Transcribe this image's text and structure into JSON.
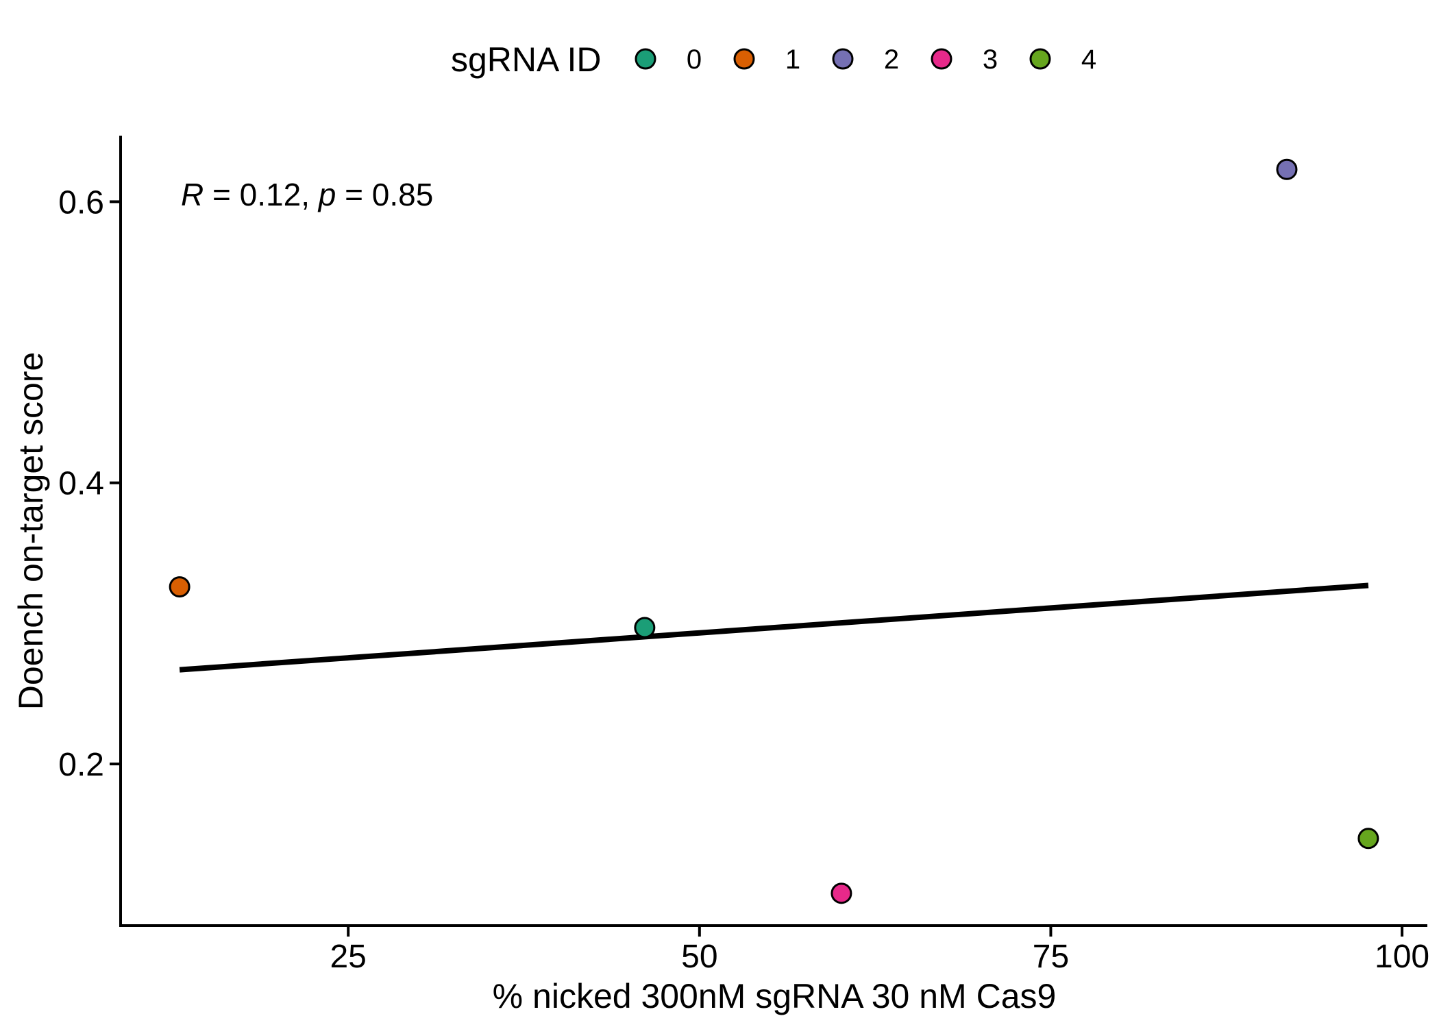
{
  "chart_data": {
    "type": "scatter",
    "title": "",
    "xlabel": "% nicked 300nM sgRNA 30 nM Cas9",
    "ylabel": "Doench on-target score",
    "xlim": [
      8.8,
      101.8
    ],
    "ylim": [
      0.085,
      0.647
    ],
    "xticks": [
      25,
      50,
      75,
      100
    ],
    "yticks": [
      0.2,
      0.4,
      0.6
    ],
    "xtick_labels": [
      "25",
      "50",
      "75",
      "100"
    ],
    "ytick_labels": [
      "0.2",
      "0.4",
      "0.6"
    ],
    "grid": false,
    "legend": {
      "title": "sgRNA ID",
      "position": "top",
      "entries": [
        {
          "label": "0",
          "color": "#1B9E77"
        },
        {
          "label": "1",
          "color": "#D95F02"
        },
        {
          "label": "2",
          "color": "#7570B3"
        },
        {
          "label": "3",
          "color": "#E7298A"
        },
        {
          "label": "4",
          "color": "#66A61E"
        }
      ]
    },
    "points": [
      {
        "id": "0",
        "x": 46.1,
        "y": 0.297,
        "color": "#1B9E77"
      },
      {
        "id": "1",
        "x": 13.0,
        "y": 0.326,
        "color": "#D95F02"
      },
      {
        "id": "2",
        "x": 91.8,
        "y": 0.623,
        "color": "#7570B3"
      },
      {
        "id": "3",
        "x": 60.1,
        "y": 0.108,
        "color": "#E7298A"
      },
      {
        "id": "4",
        "x": 97.6,
        "y": 0.147,
        "color": "#66A61E"
      }
    ],
    "regression_line": {
      "x": [
        13.0,
        97.6
      ],
      "y": [
        0.267,
        0.327
      ]
    },
    "annotation": {
      "r_symbol": "R",
      "r_text": " = 0.12, ",
      "p_symbol": "p",
      "p_text": " = 0.85"
    }
  }
}
